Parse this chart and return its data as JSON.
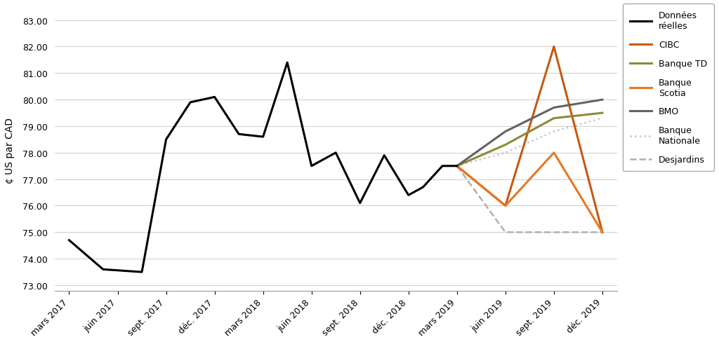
{
  "ylabel": "¢ US par CAD",
  "yticks": [
    73.0,
    74.0,
    75.0,
    76.0,
    77.0,
    78.0,
    79.0,
    80.0,
    81.0,
    82.0,
    83.0
  ],
  "ylim": [
    72.8,
    83.4
  ],
  "xtick_labels": [
    "mars 2017",
    "juin 2017",
    "sept. 2017",
    "déc. 2017",
    "mars 2018",
    "juin 2018",
    "sept. 2018",
    "déc. 2018",
    "mars 2019",
    "juin 2019",
    "sept. 2019",
    "déc. 2019"
  ],
  "background_color": "#ffffff",
  "donnees_reelles": {
    "x": [
      0,
      0.7,
      1.5,
      2.0,
      2.5,
      3.0,
      3.5,
      4.0,
      4.5,
      5.0,
      5.5,
      6.0,
      6.5,
      7.0,
      7.3,
      7.7,
      8.0
    ],
    "y": [
      74.7,
      73.6,
      73.5,
      78.5,
      79.9,
      80.1,
      78.7,
      78.6,
      81.4,
      77.5,
      78.0,
      76.1,
      77.9,
      76.4,
      76.7,
      77.5,
      77.5
    ],
    "color": "#000000",
    "linewidth": 2.2,
    "label": "Données\nréelles"
  },
  "cibc": {
    "x": [
      8,
      9,
      10,
      10,
      11
    ],
    "y": [
      77.5,
      76.0,
      82.0,
      82.0,
      75.0
    ],
    "color": "#c55a11",
    "linewidth": 2.2,
    "label": "CIBC"
  },
  "banque_td": {
    "x": [
      8,
      9,
      10,
      11
    ],
    "y": [
      77.5,
      78.3,
      79.3,
      79.5
    ],
    "color": "#8b8b3a",
    "linewidth": 2.2,
    "label": "Banque TD"
  },
  "banque_scotia": {
    "x": [
      8,
      9,
      10,
      11
    ],
    "y": [
      77.5,
      76.0,
      78.0,
      75.0
    ],
    "color": "#e87722",
    "linewidth": 2.2,
    "label": "Banque\nScotia"
  },
  "bmo": {
    "x": [
      8,
      9,
      10,
      11
    ],
    "y": [
      77.5,
      78.8,
      79.7,
      80.0
    ],
    "color": "#636363",
    "linewidth": 2.2,
    "label": "BMO"
  },
  "banque_nationale": {
    "x": [
      8,
      9,
      10,
      11
    ],
    "y": [
      77.5,
      78.0,
      78.8,
      79.3
    ],
    "color": "#c8c8c8",
    "linewidth": 1.8,
    "linestyle": "dotted",
    "label": "Banque\nNationale"
  },
  "desjardins": {
    "x": [
      8,
      9,
      10,
      11
    ],
    "y": [
      77.5,
      75.0,
      75.0,
      75.0
    ],
    "color": "#b0b0b0",
    "linewidth": 1.8,
    "linestyle": "dashed",
    "label": "Desjardins"
  }
}
